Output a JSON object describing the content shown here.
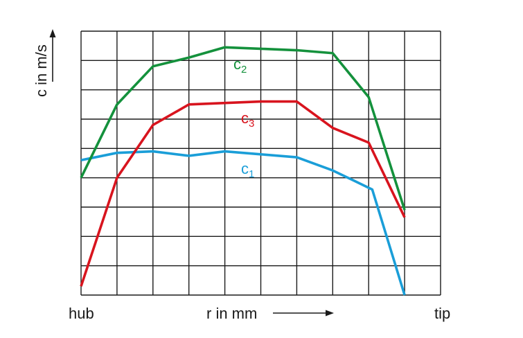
{
  "chart_data": {
    "type": "line",
    "xlabel": "r in mm",
    "ylabel": "c in m/s",
    "x_start_label": "hub",
    "x_end_label": "tip",
    "xlim": [
      0,
      10
    ],
    "ylim": [
      0,
      9
    ],
    "grid": true,
    "legend": "inline",
    "series": [
      {
        "name": "c1",
        "label_main": "c",
        "label_sub": "1",
        "color": "#1a9ed8",
        "x": [
          0,
          1,
          2,
          3,
          4,
          5,
          6,
          7,
          8.1,
          9
        ],
        "y": [
          4.6,
          4.85,
          4.9,
          4.75,
          4.9,
          4.8,
          4.7,
          4.25,
          3.6,
          0
        ]
      },
      {
        "name": "c2",
        "label_main": "c",
        "label_sub": "2",
        "color": "#14913c",
        "x": [
          0,
          1,
          2,
          3,
          4,
          5,
          6,
          7,
          8,
          9
        ],
        "y": [
          4.0,
          6.5,
          7.8,
          8.1,
          8.45,
          8.4,
          8.35,
          8.25,
          6.75,
          2.9
        ]
      },
      {
        "name": "c3",
        "label_main": "c",
        "label_sub": "3",
        "color": "#d8141e",
        "x": [
          0,
          1,
          2,
          3,
          4,
          5,
          6,
          7,
          8,
          9
        ],
        "y": [
          0.3,
          4.0,
          5.8,
          6.5,
          6.55,
          6.6,
          6.6,
          5.7,
          5.2,
          2.65
        ]
      }
    ]
  }
}
